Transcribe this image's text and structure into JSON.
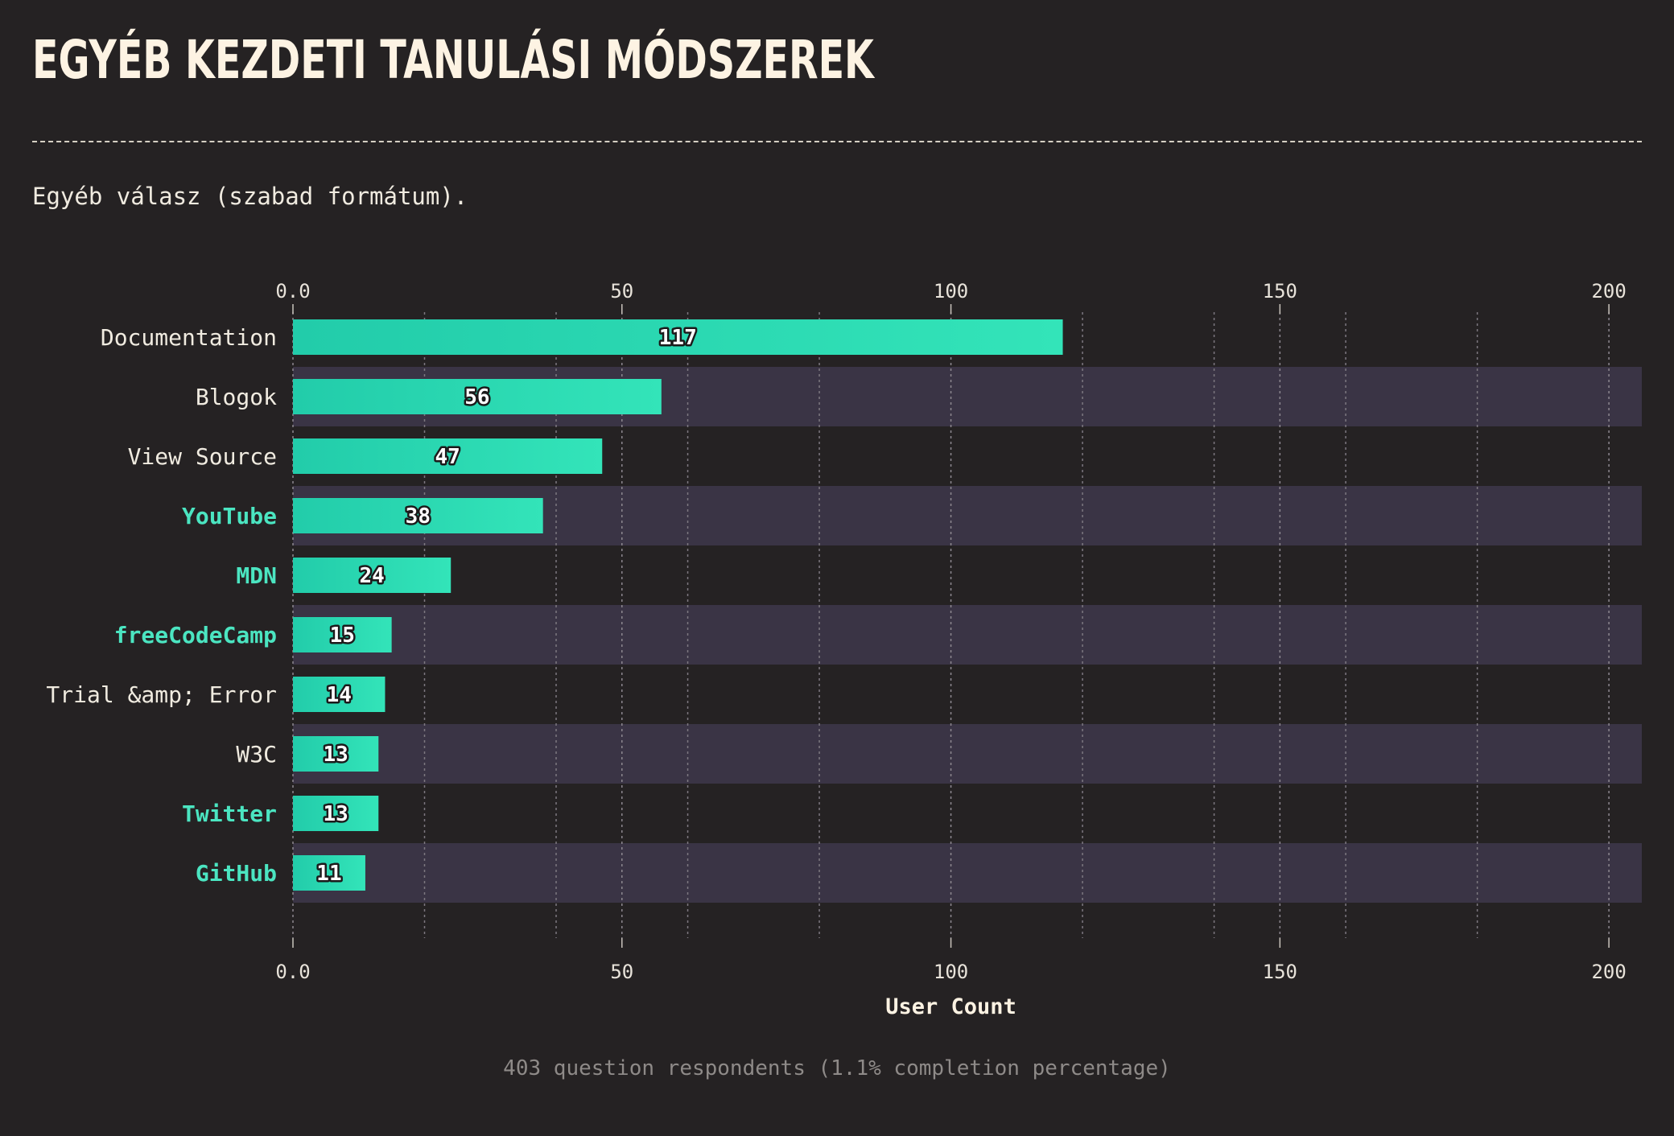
{
  "page": {
    "title": "EGYÉB KEZDETI TANULÁSI MÓDSZEREK",
    "description": "Egyéb válasz (szabad formátum).",
    "footer": "403 question respondents (1.1% completion percentage)"
  },
  "colors": {
    "background": "#252223",
    "bar_start": "#22ccaa",
    "bar_end": "#33e4b9",
    "alt_row": "#3a3445",
    "highlight_label": "#4be5c1",
    "text": "#f0ebe0"
  },
  "chart_data": {
    "type": "bar",
    "orientation": "horizontal",
    "categories": [
      "Documentation",
      "Blogok",
      "View Source",
      "YouTube",
      "MDN",
      "freeCodeCamp",
      "Trial &amp; Error",
      "W3C",
      "Twitter",
      "GitHub"
    ],
    "values": [
      117,
      56,
      47,
      38,
      24,
      15,
      14,
      13,
      13,
      11
    ],
    "highlighted": [
      false,
      false,
      false,
      true,
      true,
      true,
      false,
      false,
      true,
      true
    ],
    "xlabel": "User Count",
    "xlim": [
      0,
      205
    ],
    "x_ticks": [
      0,
      50,
      100,
      150,
      200
    ],
    "x_tick_labels": [
      "0.0",
      "50",
      "100",
      "150",
      "200"
    ],
    "minor_gridlines": [
      20,
      40,
      60,
      80,
      120,
      140,
      160,
      180
    ],
    "grid": true,
    "axis_positions": [
      "top",
      "bottom"
    ],
    "value_labels": true
  }
}
